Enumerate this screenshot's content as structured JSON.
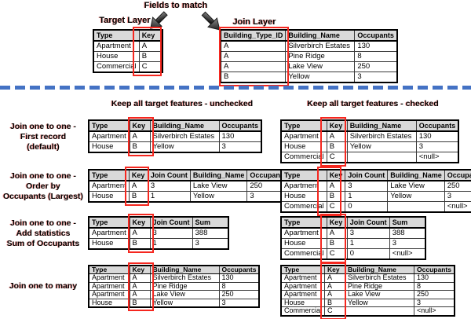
{
  "labels": {
    "fields_to_match": "Fields to match",
    "target_layer": "Target Layer",
    "join_layer": "Join Layer",
    "keep_unchecked": "Keep all target features - unchecked",
    "keep_checked": "Keep all target features - checked"
  },
  "colors": {
    "key_highlight_red": "#f5271f",
    "divider_blue": "#4472c4",
    "table_header_gray": "#d9d9d9"
  },
  "top_tables": {
    "target": {
      "columns": [
        "Type",
        "Key"
      ],
      "rows": [
        [
          "Apartment",
          "A"
        ],
        [
          "House",
          "B"
        ],
        [
          "Commercial",
          "C"
        ]
      ],
      "key_col": 1
    },
    "join": {
      "columns": [
        "Building_Type_ID",
        "Building_Name",
        "Occupants"
      ],
      "rows": [
        [
          "A",
          "Silverbirch Estates",
          "130"
        ],
        [
          "A",
          "Pine Ridge",
          "8"
        ],
        [
          "A",
          "Lake View",
          "250"
        ],
        [
          "B",
          "Yellow",
          "3"
        ]
      ],
      "key_col": 0
    }
  },
  "result_rows": [
    {
      "label_lines": [
        "Join one to one -",
        "First record",
        "(default)"
      ],
      "unchecked": {
        "columns": [
          "Type",
          "Key",
          "Building_Name",
          "Occupants"
        ],
        "rows": [
          [
            "Apartment",
            "A",
            "Silverbirch Estates",
            "130"
          ],
          [
            "House",
            "B",
            "Yellow",
            "3"
          ]
        ],
        "key_col": 1
      },
      "checked": {
        "columns": [
          "Type",
          "Key",
          "Building_Name",
          "Occupants"
        ],
        "rows": [
          [
            "Apartment",
            "A",
            "Silverbirch Estates",
            "130"
          ],
          [
            "House",
            "B",
            "Yellow",
            "3"
          ],
          [
            "Commercial",
            "C",
            "",
            "<null>"
          ]
        ],
        "key_col": 1
      }
    },
    {
      "label_lines": [
        "Join one to one -",
        "Order by",
        "Occupants (Largest)"
      ],
      "unchecked": {
        "columns": [
          "Type",
          "Key",
          "Join Count",
          "Building_Name",
          "Occupants"
        ],
        "rows": [
          [
            "Apartment",
            "A",
            "3",
            "Lake View",
            "250"
          ],
          [
            "House",
            "B",
            "1",
            "Yellow",
            "3"
          ]
        ],
        "key_col": 1
      },
      "checked": {
        "columns": [
          "Type",
          "Key",
          "Join Count",
          "Building_Name",
          "Occupants"
        ],
        "rows": [
          [
            "Apartment",
            "A",
            "3",
            "Lake View",
            "250"
          ],
          [
            "House",
            "B",
            "1",
            "Yellow",
            "3"
          ],
          [
            "Commercial",
            "C",
            "0",
            "",
            "<null>"
          ]
        ],
        "key_col": 1
      }
    },
    {
      "label_lines": [
        "Join one to one -",
        "Add statistics",
        "Sum of Occupants"
      ],
      "unchecked": {
        "columns": [
          "Type",
          "Key",
          "Join Count",
          "Sum"
        ],
        "rows": [
          [
            "Apartment",
            "A",
            "3",
            "388"
          ],
          [
            "House",
            "B",
            "1",
            "3"
          ]
        ],
        "key_col": 1
      },
      "checked": {
        "columns": [
          "Type",
          "Key",
          "Join Count",
          "Sum"
        ],
        "rows": [
          [
            "Apartment",
            "A",
            "3",
            "388"
          ],
          [
            "House",
            "B",
            "1",
            "3"
          ],
          [
            "Commercial",
            "C",
            "0",
            "<null>"
          ]
        ],
        "key_col": 1
      }
    },
    {
      "label_lines": [
        "Join one to many"
      ],
      "unchecked": {
        "columns": [
          "Type",
          "Key",
          "Building_Name",
          "Occupants"
        ],
        "rows": [
          [
            "Apartment",
            "A",
            "Silverbirch Estates",
            "130"
          ],
          [
            "Apartment",
            "A",
            "Pine Ridge",
            "8"
          ],
          [
            "Apartment",
            "A",
            "Lake View",
            "250"
          ],
          [
            "House",
            "B",
            "Yellow",
            "3"
          ]
        ],
        "key_col": 1
      },
      "checked": {
        "columns": [
          "Type",
          "Key",
          "Building_Name",
          "Occupants"
        ],
        "rows": [
          [
            "Apartment",
            "A",
            "Silverbirch Estates",
            "130"
          ],
          [
            "Apartment",
            "A",
            "Pine Ridge",
            "8"
          ],
          [
            "Apartment",
            "A",
            "Lake View",
            "250"
          ],
          [
            "House",
            "B",
            "Yellow",
            "3"
          ],
          [
            "Commercial",
            "C",
            "",
            "<null>"
          ]
        ],
        "key_col": 1
      }
    }
  ]
}
